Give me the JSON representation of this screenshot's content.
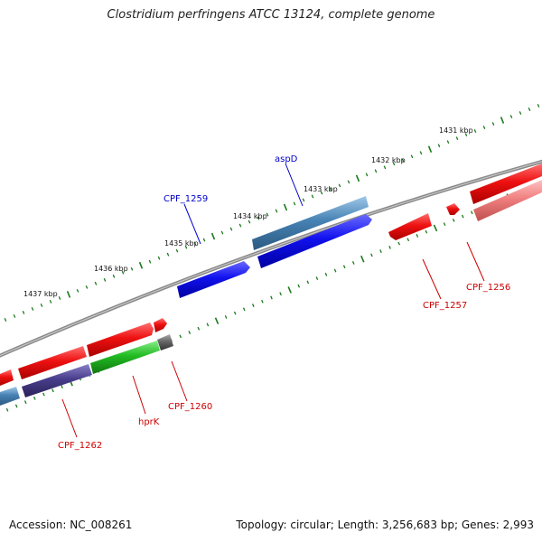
{
  "title": "Clostridium perfringens ATCC 13124, complete genome",
  "footer": {
    "accession": "Accession: NC_008261",
    "summary": "Topology: circular; Length: 3,256,683 bp; Genes: 2,993"
  },
  "colors": {
    "forward_red": "#ee1111",
    "reverse_pink": "#f08080",
    "blue": "#1111ee",
    "steelblue": "#4682b4",
    "green": "#22bb22",
    "darkslate": "#483d8b",
    "gray": "#666666",
    "tick_green": "#1a7a1a",
    "label_blue": "#0000cc",
    "label_red": "#cc0000"
  },
  "scale_labels": [
    "1431 kbp",
    "1432 kbp",
    "1433 kbp",
    "1434 kbp",
    "1435 kbp",
    "1436 kbp",
    "1437 kbp"
  ],
  "gene_labels": {
    "aspD": "aspD",
    "CPF_1259": "CPF_1259",
    "CPF_1256": "CPF_1256",
    "CPF_1257": "CPF_1257",
    "CPF_1260": "CPF_1260",
    "hprK": "hprK",
    "CPF_1262": "CPF_1262"
  }
}
